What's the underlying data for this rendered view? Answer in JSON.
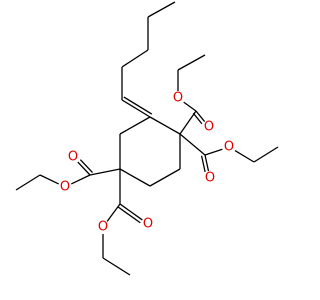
{
  "atoms": [
    {
      "label": "O"
    },
    {
      "label": "O"
    },
    {
      "label": "O"
    },
    {
      "label": "O"
    },
    {
      "label": "O"
    },
    {
      "label": "O"
    },
    {
      "label": "O"
    },
    {
      "label": "O"
    }
  ]
}
